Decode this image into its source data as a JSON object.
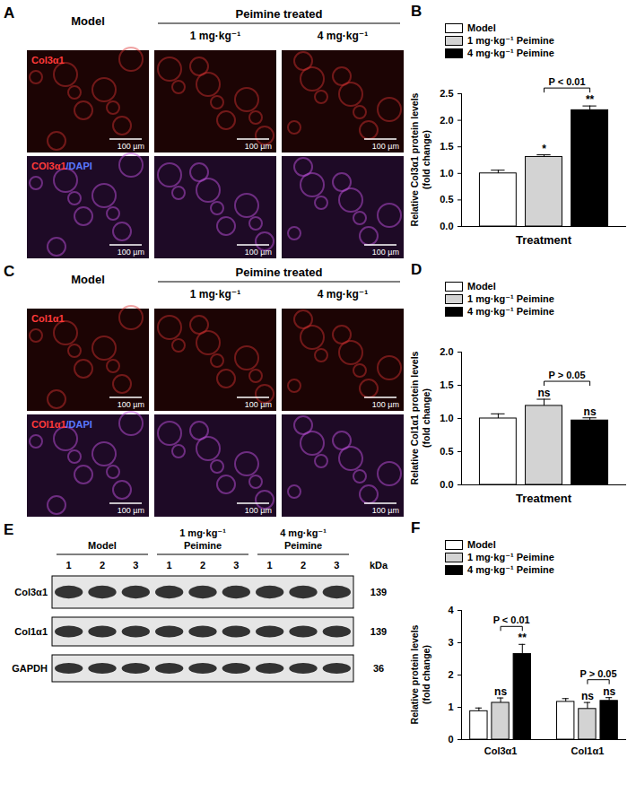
{
  "image_panels": [
    {
      "panel": "A",
      "columns": [
        "Model",
        "1 mg·kg⁻¹",
        "4 mg·kg⁻¹"
      ],
      "column_group": "Peimine treated",
      "rows": [
        "Col3α1",
        "COl3α1/DAPI"
      ],
      "scale_bar": "100 µm"
    },
    {
      "panel": "C",
      "columns": [
        "Model",
        "1 mg·kg⁻¹",
        "4 mg·kg⁻¹"
      ],
      "column_group": "Peimine treated",
      "rows": [
        "Col1α1",
        "COl1α1/DAPI"
      ],
      "scale_bar": "100 µm"
    }
  ],
  "blot": {
    "panel": "E",
    "groups": [
      {
        "label": "Model",
        "lanes": [
          1,
          2,
          3
        ]
      },
      {
        "label": "1 mg·kg⁻¹ Peimine",
        "lanes": [
          1,
          2,
          3
        ]
      },
      {
        "label": "4 mg·kg⁻¹ Peimine",
        "lanes": [
          1,
          2,
          3
        ]
      }
    ],
    "rows": [
      {
        "label": "Col3α1",
        "kDa": 139
      },
      {
        "label": "Col1α1",
        "kDa": 139
      },
      {
        "label": "GAPDH",
        "kDa": 36
      }
    ],
    "unit": "kDa"
  },
  "chart_data": [
    {
      "panel": "B",
      "type": "bar",
      "categories": [
        "Model",
        "1 mg·kg⁻¹ Peimine",
        "4 mg·kg⁻¹ Peimine"
      ],
      "values": [
        1.0,
        1.31,
        2.19
      ],
      "errors": [
        0.06,
        0.04,
        0.08
      ],
      "colors": [
        "#ffffff",
        "#d3d3d3",
        "#000000"
      ],
      "significance": [
        null,
        "*",
        "**"
      ],
      "comparisons": [
        {
          "from": "1 mg·kg⁻¹ Peimine",
          "to": "4 mg·kg⁻¹ Peimine",
          "label": "P < 0.01"
        }
      ],
      "xlabel": "Treatment",
      "ylabel": "Relative Col3α1 protein levels (fold change)",
      "ylim": [
        0,
        2.5
      ],
      "yticks": [
        {
          "value": 0,
          "label": "0.0"
        },
        0.5,
        {
          "value": 1,
          "label": "1.0"
        },
        1.5,
        {
          "value": 2,
          "label": "2.0"
        },
        2.5
      ],
      "tick_labels": "y",
      "legend": "top",
      "grid": false
    },
    {
      "panel": "D",
      "type": "bar",
      "categories": [
        "Model",
        "1 mg·kg⁻¹ Peimine",
        "4 mg·kg⁻¹ Peimine"
      ],
      "values": [
        1.0,
        1.19,
        0.97
      ],
      "errors": [
        0.07,
        0.1,
        0.04
      ],
      "colors": [
        "#ffffff",
        "#d3d3d3",
        "#000000"
      ],
      "significance": [
        null,
        "ns",
        "ns"
      ],
      "comparisons": [
        {
          "from": "1 mg·kg⁻¹ Peimine",
          "to": "4 mg·kg⁻¹ Peimine",
          "label": "P > 0.05"
        }
      ],
      "xlabel": "Treatment",
      "ylabel": "Relative Col1α1 protein levels (fold change)",
      "ylim": [
        0,
        2
      ],
      "yticks": [
        {
          "value": 0,
          "label": "0.0"
        },
        0.5,
        {
          "value": 1,
          "label": "1.0"
        },
        1.5,
        {
          "value": 2,
          "label": "2.0"
        }
      ],
      "tick_labels": "y",
      "legend": "top",
      "grid": false
    },
    {
      "panel": "F",
      "type": "bar",
      "categories": [
        "Col3α1",
        "Col1α1"
      ],
      "series": [
        {
          "name": "Model",
          "color": "#ffffff",
          "values": [
            0.88,
            1.17
          ],
          "errors": [
            0.1,
            0.1
          ],
          "significance": [
            null,
            null
          ]
        },
        {
          "name": "1 mg·kg⁻¹ Peimine",
          "color": "#d3d3d3",
          "values": [
            1.14,
            0.95
          ],
          "errors": [
            0.15,
            0.2
          ],
          "significance": [
            "ns",
            "ns"
          ]
        },
        {
          "name": "4 mg·kg⁻¹ Peimine",
          "color": "#000000",
          "values": [
            2.65,
            1.2
          ],
          "errors": [
            0.3,
            0.1
          ],
          "significance": [
            "**",
            "ns"
          ]
        }
      ],
      "comparisons": [
        {
          "category": "Col3α1",
          "from": "1 mg·kg⁻¹ Peimine",
          "to": "4 mg·kg⁻¹ Peimine",
          "label": "P < 0.01"
        },
        {
          "category": "Col1α1",
          "from": "1 mg·kg⁻¹ Peimine",
          "to": "4 mg·kg⁻¹ Peimine",
          "label": "P > 0.05"
        }
      ],
      "ylabel": "Relative protein levels (fold change)",
      "ylim": [
        0,
        4
      ],
      "yticks": [
        0,
        1,
        2,
        3,
        4
      ],
      "legend": "top",
      "grid": false
    }
  ]
}
